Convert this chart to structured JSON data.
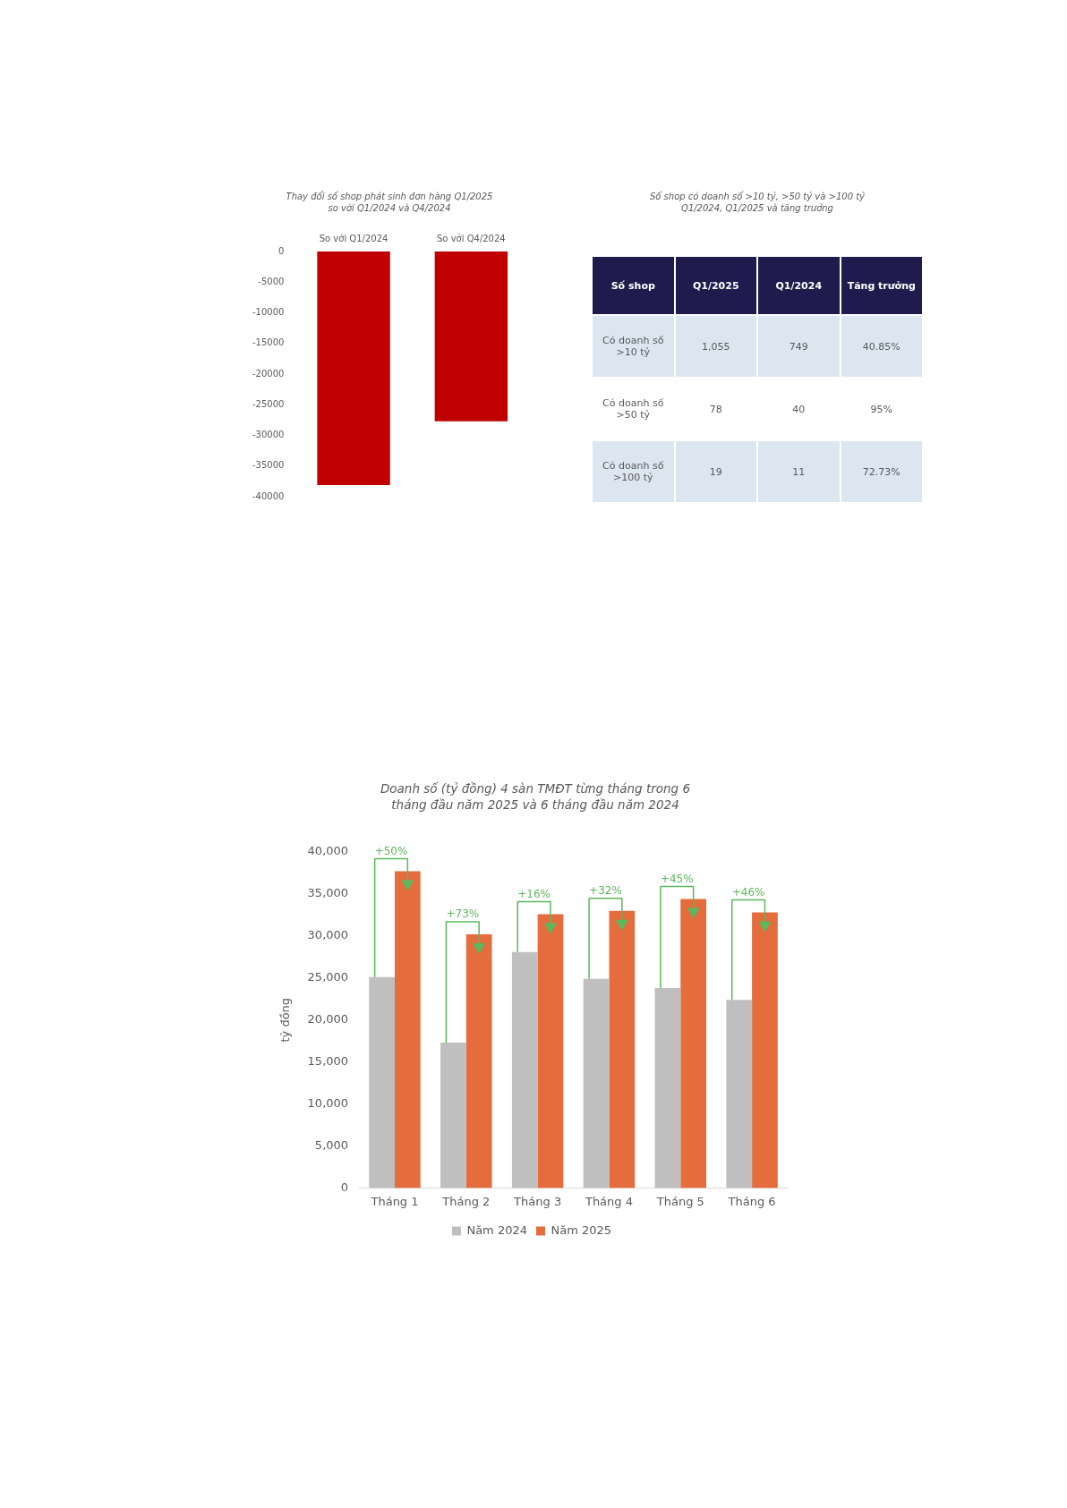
{
  "chart_data": [
    {
      "type": "bar",
      "title": "Thay đổi số shop phát sinh đơn hàng Q1/2025 so với Q1/2024 và Q4/2024",
      "categories": [
        "So với Q1/2024",
        "So với Q4/2024"
      ],
      "values": [
        -38100,
        -27700
      ],
      "color": "#c00000",
      "ylim": [
        -40000,
        0
      ],
      "yticks": [
        0,
        -5000,
        -10000,
        -15000,
        -20000,
        -25000,
        -30000,
        -35000,
        -40000
      ]
    },
    {
      "type": "other",
      "title": "Số shop có doanh số >10 tỷ, >50 tỷ và >100 tỷ Q1/2024, Q1/2025 và tăng trưởng",
      "ylabel": "Số shop",
      "categories": [
        "Q1/2025",
        "Q1/2024",
        "Tăng trưởng"
      ],
      "y_categories": [
        "Có doanh số >10 tỷ",
        "Có doanh số >50 tỷ",
        "Có doanh số >100 tỷ"
      ],
      "cell_labels": [
        [
          "1,055",
          "749",
          "40.85%"
        ],
        [
          "78",
          "40",
          "95%"
        ],
        [
          "19",
          "11",
          "72.73%"
        ]
      ]
    },
    {
      "type": "bar",
      "title": "Doanh số (tỷ đồng) 4 sàn TMĐT từng tháng trong 6 tháng đầu năm 2025 và 6 tháng đầu năm 2024",
      "ylabel": "tỷ đồng",
      "categories": [
        "Tháng 1",
        "Tháng 2",
        "Tháng 3",
        "Tháng 4",
        "Tháng 5",
        "Tháng 6"
      ],
      "series": [
        {
          "name": "Năm 2024",
          "color": "#bfbfbf",
          "values": [
            25100,
            17300,
            28100,
            24900,
            23800,
            22400
          ]
        },
        {
          "name": "Năm 2025",
          "color": "#e46c3d",
          "values": [
            37700,
            30200,
            32600,
            33000,
            34400,
            32800
          ]
        }
      ],
      "ylim": [
        0,
        40000
      ],
      "yticks": [
        {
          "value": 0,
          "label": "0"
        },
        {
          "value": 5000,
          "label": "5,000"
        },
        {
          "value": 10000,
          "label": "10,000"
        },
        {
          "value": 15000,
          "label": "15,000"
        },
        {
          "value": 20000,
          "label": "20,000"
        },
        {
          "value": 25000,
          "label": "25,000"
        },
        {
          "value": 30000,
          "label": "30,000"
        },
        {
          "value": 35000,
          "label": "35,000"
        },
        {
          "value": 40000,
          "label": "40,000"
        }
      ],
      "legend": "bottom",
      "annotations": [
        {
          "text": "+50%",
          "x": "Tháng 1",
          "y": 37700
        },
        {
          "text": "+73%",
          "x": "Tháng 2",
          "y": 30200
        },
        {
          "text": "+16%",
          "x": "Tháng 3",
          "y": 32600
        },
        {
          "text": "+32%",
          "x": "Tháng 4",
          "y": 33000
        },
        {
          "text": "+45%",
          "x": "Tháng 5",
          "y": 34400
        },
        {
          "text": "+46%",
          "x": "Tháng 6",
          "y": 32800
        }
      ]
    }
  ]
}
